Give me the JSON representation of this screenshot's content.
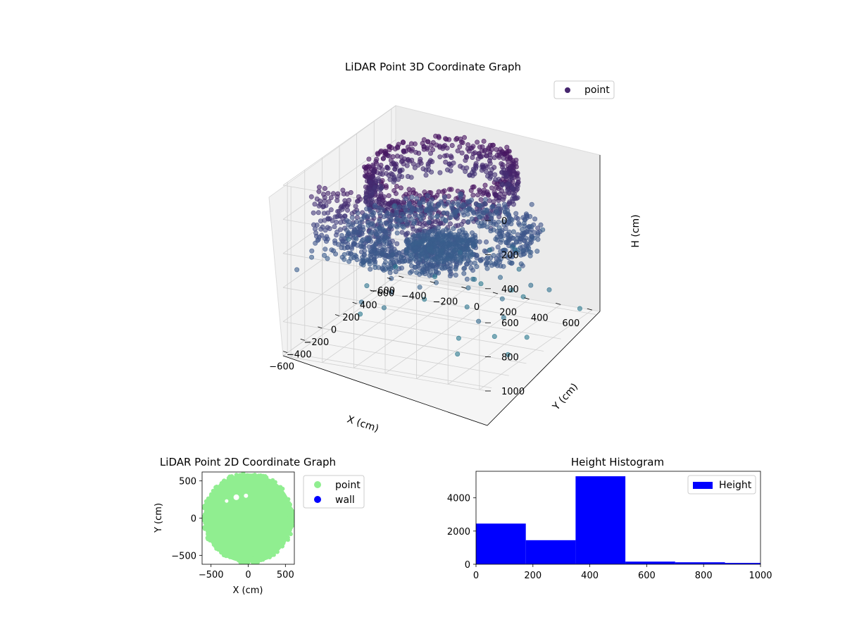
{
  "chart_data": [
    {
      "type": "scatter",
      "title": "LiDAR Point 3D Coordinate Graph",
      "xlabel": "X (cm)",
      "ylabel": "Y (cm)",
      "zlabel": "H (cm)",
      "xlim": [
        -650,
        650
      ],
      "ylim": [
        -650,
        650
      ],
      "zlim": [
        0,
        1000
      ],
      "z_inverted": true,
      "x_ticks": [
        "−600",
        "−400",
        "−200",
        "0",
        "200",
        "400",
        "600"
      ],
      "y_ticks": [
        "−600",
        "−400",
        "−200",
        "0",
        "200",
        "400",
        "600"
      ],
      "z_ticks": [
        "0",
        "200",
        "400",
        "600",
        "800",
        "1000"
      ],
      "grid": true,
      "legend": {
        "position": "top-right",
        "entries": [
          {
            "label": "point",
            "color": "#46266e"
          }
        ]
      },
      "colormap": "viridis",
      "series": [
        {
          "name": "point",
          "shape": "ring-structure",
          "segments": [
            {
              "part": "dome-ring",
              "radius": [
                380,
                430
              ],
              "height": [
                0,
                220
              ]
            },
            {
              "part": "mid-ring",
              "radius": [
                300,
                560
              ],
              "height": [
                380,
                480
              ]
            },
            {
              "part": "inner-floor",
              "radius": [
                0,
                200
              ],
              "height": [
                450,
                520
              ]
            },
            {
              "part": "wall-slab",
              "x": -420,
              "y": [
                -600,
                200
              ],
              "height": [
                80,
                500
              ]
            }
          ]
        }
      ]
    },
    {
      "type": "scatter",
      "title": "LiDAR Point 2D Coordinate Graph",
      "xlabel": "X (cm)",
      "ylabel": "Y (cm)",
      "xlim": [
        -620,
        620
      ],
      "ylim": [
        -620,
        620
      ],
      "x_ticks": [
        "−500",
        "0",
        "500"
      ],
      "y_ticks": [
        "−500",
        "0",
        "500"
      ],
      "legend": {
        "position": "outside-right",
        "entries": [
          {
            "label": "point",
            "color": "#90ee90"
          },
          {
            "label": "wall",
            "color": "#0000ff"
          }
        ]
      },
      "series": [
        {
          "name": "point",
          "color": "#90ee90",
          "region": "disc",
          "center": [
            0,
            0
          ],
          "radius": 600
        },
        {
          "name": "wall",
          "color": "#0000ff",
          "points": []
        }
      ]
    },
    {
      "type": "bar",
      "title": "Height Histogram",
      "xlabel": "",
      "ylabel": "",
      "xlim": [
        0,
        1000
      ],
      "ylim": [
        0,
        5600
      ],
      "x_ticks": [
        "0",
        "200",
        "400",
        "600",
        "800",
        "1000"
      ],
      "y_ticks": [
        "0",
        "2000",
        "4000"
      ],
      "legend": {
        "position": "top-right",
        "entries": [
          {
            "label": "Height",
            "color": "#0000ff"
          }
        ]
      },
      "color": "#0000ff",
      "bins": [
        {
          "x0": 0,
          "x1": 175,
          "count": 2450
        },
        {
          "x0": 175,
          "x1": 350,
          "count": 1450
        },
        {
          "x0": 350,
          "x1": 525,
          "count": 5300
        },
        {
          "x0": 525,
          "x1": 700,
          "count": 160
        },
        {
          "x0": 700,
          "x1": 875,
          "count": 120
        },
        {
          "x0": 875,
          "x1": 1050,
          "count": 80
        }
      ]
    }
  ]
}
